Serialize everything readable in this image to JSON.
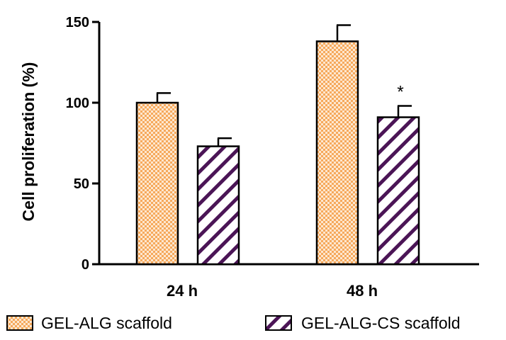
{
  "chart_data": {
    "type": "bar",
    "title": "",
    "xlabel": "",
    "ylabel": "Cell proliferation (%)",
    "ylim": [
      0,
      150
    ],
    "yticks": [
      0,
      50,
      100,
      150
    ],
    "grid": false,
    "legend_position": "bottom",
    "categories": [
      "24 h",
      "48 h"
    ],
    "series": [
      {
        "name": "GEL-ALG scaffold",
        "pattern": "checkered",
        "color": "#f6a95c",
        "values": [
          100,
          138
        ],
        "errors": [
          6,
          10
        ],
        "annotations": [
          "",
          ""
        ]
      },
      {
        "name": "GEL-ALG-CS scaffold",
        "pattern": "diagonal-hatch",
        "color": "#4b1556",
        "values": [
          73,
          91
        ],
        "errors": [
          5,
          7
        ],
        "annotations": [
          "",
          "*"
        ]
      }
    ]
  }
}
